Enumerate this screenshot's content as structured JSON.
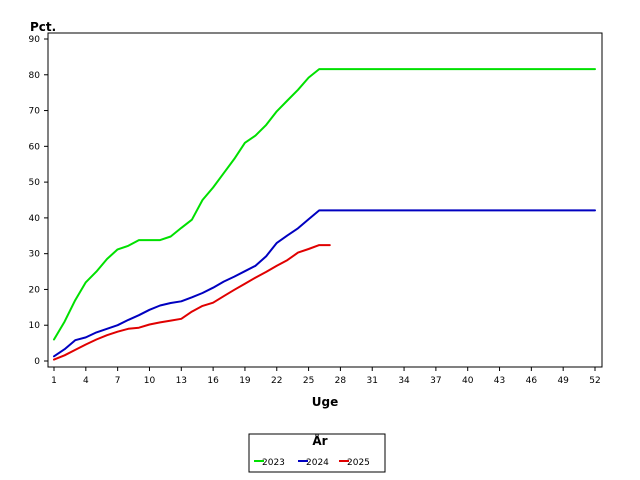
{
  "chart_data": {
    "type": "line",
    "ylabel": "Pct.",
    "xlabel": "Uge",
    "xlim": [
      1,
      52
    ],
    "ylim": [
      0,
      90
    ],
    "x_ticks": [
      1,
      4,
      7,
      10,
      13,
      16,
      19,
      22,
      25,
      28,
      31,
      34,
      37,
      40,
      43,
      46,
      49,
      52
    ],
    "y_ticks": [
      0,
      10,
      20,
      30,
      40,
      50,
      60,
      70,
      80,
      90
    ],
    "grid": false,
    "legend": {
      "title": "År",
      "placement": "bottom-center"
    },
    "series": [
      {
        "name": "2023",
        "color": "#00e000",
        "points": [
          [
            1,
            6
          ],
          [
            2,
            11
          ],
          [
            3,
            17
          ],
          [
            4,
            22
          ],
          [
            5,
            25
          ],
          [
            6,
            28.5
          ],
          [
            7,
            31.2
          ],
          [
            8,
            32.2
          ],
          [
            9,
            33.8
          ],
          [
            10,
            33.8
          ],
          [
            11,
            33.8
          ],
          [
            12,
            34.8
          ],
          [
            13,
            37.2
          ],
          [
            14,
            39.5
          ],
          [
            15,
            45
          ],
          [
            16,
            48.5
          ],
          [
            17,
            52.5
          ],
          [
            18,
            56.5
          ],
          [
            19,
            61
          ],
          [
            20,
            63
          ],
          [
            21,
            66
          ],
          [
            22,
            69.8
          ],
          [
            23,
            72.8
          ],
          [
            24,
            75.8
          ],
          [
            25,
            79.2
          ],
          [
            26,
            81.6
          ],
          [
            27,
            81.6
          ],
          [
            52,
            81.6
          ]
        ]
      },
      {
        "name": "2024",
        "color": "#0000c0",
        "points": [
          [
            1,
            1.3
          ],
          [
            2,
            3.3
          ],
          [
            3,
            5.8
          ],
          [
            4,
            6.6
          ],
          [
            5,
            8
          ],
          [
            6,
            9
          ],
          [
            7,
            10
          ],
          [
            8,
            11.5
          ],
          [
            9,
            12.8
          ],
          [
            10,
            14.3
          ],
          [
            11,
            15.5
          ],
          [
            12,
            16.2
          ],
          [
            13,
            16.7
          ],
          [
            14,
            17.8
          ],
          [
            15,
            19
          ],
          [
            16,
            20.5
          ],
          [
            17,
            22.2
          ],
          [
            18,
            23.6
          ],
          [
            19,
            25.1
          ],
          [
            20,
            26.6
          ],
          [
            21,
            29.3
          ],
          [
            22,
            33
          ],
          [
            23,
            35.1
          ],
          [
            24,
            37.1
          ],
          [
            25,
            39.6
          ],
          [
            26,
            42.1
          ],
          [
            52,
            42.1
          ]
        ]
      },
      {
        "name": "2025",
        "color": "#e00000",
        "points": [
          [
            1,
            0.4
          ],
          [
            2,
            1.6
          ],
          [
            3,
            3.1
          ],
          [
            4,
            4.6
          ],
          [
            5,
            6
          ],
          [
            6,
            7.2
          ],
          [
            7,
            8.2
          ],
          [
            8,
            9
          ],
          [
            9,
            9.3
          ],
          [
            10,
            10.2
          ],
          [
            11,
            10.8
          ],
          [
            12,
            11.3
          ],
          [
            13,
            11.8
          ],
          [
            14,
            13.8
          ],
          [
            15,
            15.4
          ],
          [
            16,
            16.3
          ],
          [
            17,
            18.1
          ],
          [
            18,
            19.9
          ],
          [
            19,
            21.6
          ],
          [
            20,
            23.3
          ],
          [
            21,
            24.9
          ],
          [
            22,
            26.6
          ],
          [
            23,
            28.2
          ],
          [
            24,
            30.3
          ],
          [
            25,
            31.3
          ],
          [
            26,
            32.4
          ],
          [
            27,
            32.4
          ]
        ]
      }
    ]
  }
}
